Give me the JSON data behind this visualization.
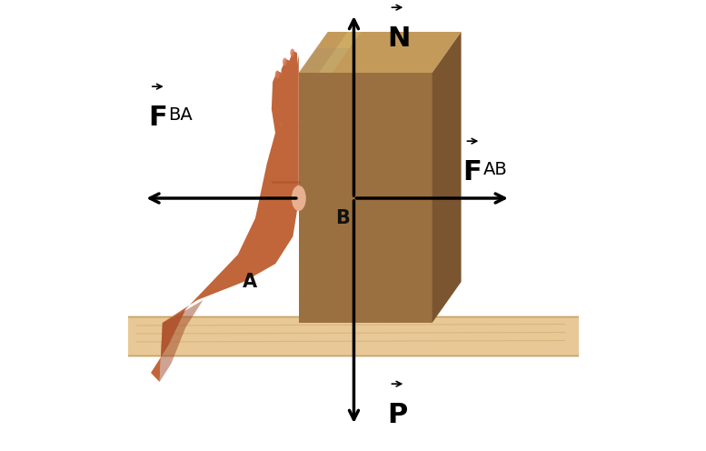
{
  "bg_color": "#ffffff",
  "box_front_color": "#9B7040",
  "box_top_color": "#C49A5A",
  "box_right_color": "#7A5530",
  "box_highlight": "#D4B868",
  "shelf_color": "#E8C896",
  "shelf_line_color": "#C8A060",
  "hand_main": "#C1663A",
  "hand_dark": "#A04828",
  "hand_light": "#D4845A",
  "hand_pale": "#E8B090",
  "knob_color": "#E8B090",
  "arrow_color": "#000000",
  "label_A": "A",
  "label_B": "B",
  "fig_w": 7.77,
  "fig_h": 4.96,
  "dpi": 100
}
